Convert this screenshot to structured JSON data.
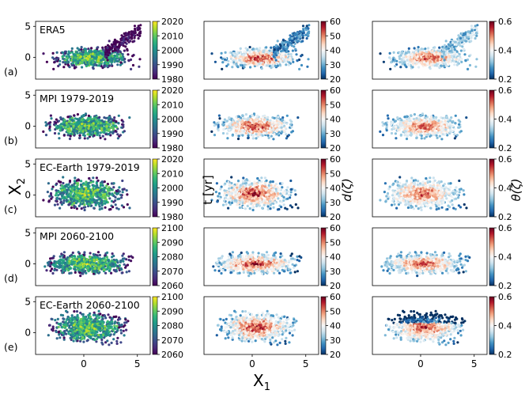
{
  "figure": {
    "x_axis_label": "X",
    "x_axis_label_sub": "1",
    "y_axis_label": "X",
    "y_axis_label_sub": "2",
    "colorbar_time_label": "t [yr]",
    "colorbar_d_label": "d(ζ)",
    "colorbar_theta_label": "θ(ζ)"
  },
  "colors": {
    "viridis": [
      "#440154",
      "#482878",
      "#3e4989",
      "#31688e",
      "#26828e",
      "#1f9e89",
      "#35b779",
      "#6ece58",
      "#b5de2b",
      "#fde725"
    ],
    "rdbu_r": [
      "#053061",
      "#2166ac",
      "#4393c3",
      "#92c5de",
      "#d1e5f0",
      "#f7f7f7",
      "#fddbc7",
      "#f4a582",
      "#d6604d",
      "#b2182b",
      "#67001f"
    ]
  },
  "chart_data": {
    "type": "scatter",
    "x_ticks": [
      0,
      5
    ],
    "y_ticks": [
      0,
      5
    ],
    "x_tick_labels": [
      "0",
      "5"
    ],
    "y_tick_labels": [
      "0",
      "5"
    ],
    "xlim": [
      -4.5,
      6.2
    ],
    "ylim": [
      -3.5,
      5.8
    ],
    "rows": [
      {
        "label": "ERA5",
        "row_tag": "(a)",
        "time_range": [
          1980,
          2020
        ],
        "time_ticks": [
          "2020",
          "2010",
          "2000",
          "1990",
          "1980"
        ],
        "cloud": {
          "cx": 0.8,
          "cy": -0.1,
          "sx": 1.6,
          "sy": 0.7,
          "xmin": -3.8,
          "xmax": 5.3,
          "tail": true
        }
      },
      {
        "label": "MPI 1979-2019",
        "row_tag": "(b)",
        "time_range": [
          1980,
          2020
        ],
        "time_ticks": [
          "2020",
          "2010",
          "2000",
          "1990",
          "1980"
        ],
        "cloud": {
          "cx": 0.3,
          "cy": 0.0,
          "sx": 1.6,
          "sy": 0.8,
          "xmin": -3.8,
          "xmax": 4.3,
          "tail": false
        }
      },
      {
        "label": "EC-Earth 1979-2019",
        "row_tag": "(c)",
        "time_range": [
          1980,
          2020
        ],
        "time_ticks": [
          "2020",
          "2010",
          "2000",
          "1990",
          "1980"
        ],
        "cloud": {
          "cx": 0.2,
          "cy": 0.2,
          "sx": 1.5,
          "sy": 1.1,
          "xmin": -3.8,
          "xmax": 4.3,
          "tail": false
        }
      },
      {
        "label": "MPI 2060-2100",
        "row_tag": "(d)",
        "time_range": [
          2060,
          2100
        ],
        "time_ticks": [
          "2100",
          "2090",
          "2080",
          "2070",
          "2060"
        ],
        "cloud": {
          "cx": 0.3,
          "cy": 0.0,
          "sx": 1.7,
          "sy": 0.75,
          "xmin": -3.8,
          "xmax": 4.6,
          "tail": false
        }
      },
      {
        "label": "EC-Earth 2060-2100",
        "row_tag": "(e)",
        "time_range": [
          2060,
          2100
        ],
        "time_ticks": [
          "2100",
          "2090",
          "2080",
          "2070",
          "2060"
        ],
        "cloud": {
          "cx": 0.4,
          "cy": 0.9,
          "sx": 1.5,
          "sy": 1.1,
          "xmin": -3.4,
          "xmax": 4.4,
          "tail": false
        }
      }
    ],
    "d_colorbar": {
      "range": [
        20,
        60
      ],
      "ticks": [
        "60",
        "50",
        "40",
        "30",
        "20"
      ]
    },
    "theta_colorbar": {
      "range": [
        0.2,
        0.6
      ],
      "ticks": [
        "0.6",
        "0.4",
        "0.2"
      ]
    }
  }
}
